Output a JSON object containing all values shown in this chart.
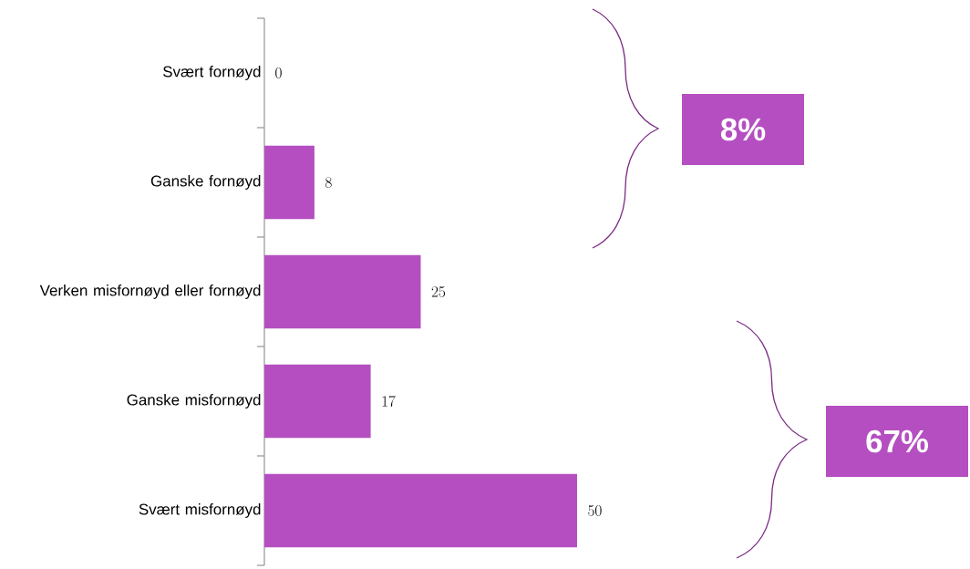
{
  "chart_data": {
    "type": "bar",
    "orientation": "horizontal",
    "categories": [
      "Svært fornøyd",
      "Ganske fornøyd",
      "Verken misfornøyd eller fornøyd",
      "Ganske misfornøyd",
      "Svært misfornøyd"
    ],
    "values": [
      0,
      8,
      25,
      17,
      50
    ],
    "color": "#b54fc1",
    "data_labels": true,
    "annotations": [
      "8%",
      "67%"
    ]
  }
}
